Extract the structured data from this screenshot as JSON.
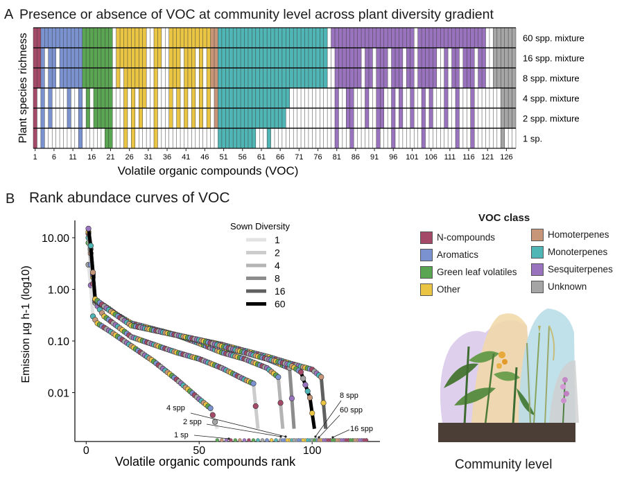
{
  "panel_a": {
    "letter": "A",
    "title": "Presence or absence of VOC at community level across plant diversity gradient"
  },
  "panel_b": {
    "letter": "B",
    "title": "Rank abundace curves of VOC"
  },
  "legend": {
    "title": "VOC class",
    "items": [
      {
        "label": "N-compounds",
        "color": "#a44a68"
      },
      {
        "label": "Aromatics",
        "color": "#7a93d0"
      },
      {
        "label": "Green leaf volatiles",
        "color": "#5aa551"
      },
      {
        "label": "Other",
        "color": "#eac443"
      },
      {
        "label": "Homoterpenes",
        "color": "#c79578"
      },
      {
        "label": "Monoterpenes",
        "color": "#4fb5b5"
      },
      {
        "label": "Sesquiterpenes",
        "color": "#9a73be"
      },
      {
        "label": "Unknown",
        "color": "#a5a5a5"
      }
    ]
  },
  "community_caption": "Community level",
  "chart_data": [
    {
      "type": "heatmap",
      "title": "Presence or absence of VOC at community level across plant diversity gradient",
      "xlabel": "Volatile organic compounds (VOC)",
      "ylabel": "Plant species richness",
      "n_compounds": 128,
      "x_ticks": [
        "1",
        "6",
        "11",
        "16",
        "21",
        "26",
        "31",
        "36",
        "41",
        "46",
        "51",
        "56",
        "61",
        "66",
        "71",
        "76",
        "81",
        "86",
        "91",
        "96",
        "101",
        "106",
        "111",
        "116",
        "121",
        "126"
      ],
      "rows": [
        "60 spp. mixture",
        "16 spp. mixture",
        "8 spp. mixture",
        "4 spp. mixture",
        "2 spp. mixture",
        "1 sp."
      ],
      "class_ranges": [
        {
          "class": "N-compounds",
          "from": 1,
          "to": 2
        },
        {
          "class": "Aromatics",
          "from": 3,
          "to": 13
        },
        {
          "class": "Green leaf volatiles",
          "from": 14,
          "to": 21
        },
        {
          "class": "Other",
          "from": 22,
          "to": 47
        },
        {
          "class": "Homoterpenes",
          "from": 48,
          "to": 49
        },
        {
          "class": "Monoterpenes",
          "from": 50,
          "to": 79
        },
        {
          "class": "Sesquiterpenes",
          "from": 80,
          "to": 122
        },
        {
          "class": "Unknown",
          "from": 123,
          "to": 128
        }
      ],
      "presence": {
        "60 spp. mixture": "11111111111111111111101111111100110011111111111111111111111111111111111111111101111111111111111111111011111111111111111100111111",
        "16 spp. mixture": "11101101111111111111101111111100110011101110101111111111111111111111111111111100111111101101110111011011111001011011101100111111",
        "8 spp. mixture": "11101101111111111111101011111100100011101110101111111111111111111111111111111100111111101101110111011011111001011011101100111111",
        "4 spp. mixture": "10101000010010101111100010101100100010101010101011111111111111111111000000000000100110001001100101001001010001001000100000001111",
        "2 spp. mixture": "10101000010010101111100010101000100010101010101011111111111111111110000000000000100110001001100101001001010001001000100000001111",
        "1 sp.": "10100000000010000001100010100000100000000000000001111111111000100000000000000000100010000001000100000001000000001000100000001000"
      }
    },
    {
      "type": "scatter",
      "title": "Rank abundace curves of VOC",
      "xlabel": "Volatile organic compounds rank",
      "ylabel": "Emission µg h-1 (log10)",
      "xlim": [
        -5,
        130
      ],
      "x_ticks": [
        0,
        50,
        100
      ],
      "y_ticks": [
        {
          "value": 10,
          "label": "10.00"
        },
        {
          "value": 1,
          "label": "1.00"
        },
        {
          "value": 0.1,
          "label": "0.10"
        },
        {
          "value": 0.01,
          "label": "0.01"
        }
      ],
      "legend_title": "Sown Diversity",
      "series": [
        {
          "name": "1",
          "color": "#e3e3e3",
          "drop_rank": 58,
          "points": [
            [
              1,
              3.0
            ],
            [
              2,
              1.2
            ],
            [
              3,
              0.3
            ],
            [
              5,
              0.22
            ],
            [
              10,
              0.16
            ],
            [
              20,
              0.08
            ],
            [
              30,
              0.04
            ],
            [
              40,
              0.018
            ],
            [
              50,
              0.0075
            ],
            [
              55,
              0.005
            ],
            [
              58,
              0.002
            ]
          ]
        },
        {
          "name": "2",
          "color": "#cccccc",
          "drop_rank": 76,
          "points": [
            [
              1,
              8.0
            ],
            [
              2,
              3.0
            ],
            [
              4,
              0.55
            ],
            [
              8,
              0.3
            ],
            [
              20,
              0.12
            ],
            [
              40,
              0.06
            ],
            [
              50,
              0.045
            ],
            [
              60,
              0.03
            ],
            [
              70,
              0.018
            ],
            [
              74,
              0.015
            ],
            [
              76,
              0.002
            ]
          ]
        },
        {
          "name": "4",
          "color": "#b4b4b4",
          "drop_rank": 87,
          "points": [
            [
              1,
              10.0
            ],
            [
              2,
              5.0
            ],
            [
              4,
              0.6
            ],
            [
              10,
              0.4
            ],
            [
              20,
              0.22
            ],
            [
              40,
              0.13
            ],
            [
              50,
              0.09
            ],
            [
              60,
              0.06
            ],
            [
              70,
              0.045
            ],
            [
              80,
              0.03
            ],
            [
              85,
              0.02
            ],
            [
              87,
              0.002
            ]
          ]
        },
        {
          "name": "8",
          "color": "#8c8c8c",
          "drop_rank": 92,
          "points": [
            [
              1,
              12.0
            ],
            [
              2,
              6.0
            ],
            [
              4,
              0.62
            ],
            [
              10,
              0.42
            ],
            [
              20,
              0.2
            ],
            [
              40,
              0.13
            ],
            [
              50,
              0.1
            ],
            [
              60,
              0.075
            ],
            [
              70,
              0.06
            ],
            [
              80,
              0.045
            ],
            [
              90,
              0.03
            ],
            [
              92,
              0.002
            ]
          ]
        },
        {
          "name": "16",
          "color": "#606060",
          "drop_rank": 106,
          "points": [
            [
              1,
              13.0
            ],
            [
              2,
              7.0
            ],
            [
              4,
              0.62
            ],
            [
              10,
              0.42
            ],
            [
              20,
              0.2
            ],
            [
              40,
              0.13
            ],
            [
              50,
              0.105
            ],
            [
              60,
              0.085
            ],
            [
              70,
              0.065
            ],
            [
              80,
              0.05
            ],
            [
              90,
              0.037
            ],
            [
              100,
              0.028
            ],
            [
              104,
              0.02
            ],
            [
              106,
              0.002
            ]
          ]
        },
        {
          "name": "60",
          "color": "#000000",
          "drop_rank": 101,
          "points": [
            [
              1,
              15.0
            ],
            [
              2,
              7.0
            ],
            [
              4,
              0.65
            ],
            [
              10,
              0.4
            ],
            [
              20,
              0.2
            ],
            [
              40,
              0.13
            ],
            [
              50,
              0.105
            ],
            [
              60,
              0.08
            ],
            [
              70,
              0.06
            ],
            [
              80,
              0.045
            ],
            [
              90,
              0.035
            ],
            [
              95,
              0.025
            ],
            [
              99,
              0.008
            ],
            [
              101,
              0.002
            ]
          ]
        }
      ],
      "annotations": [
        "8 spp",
        "60 spp",
        "16 spp",
        "4 spp",
        "2 spp",
        "1 sp"
      ]
    }
  ]
}
